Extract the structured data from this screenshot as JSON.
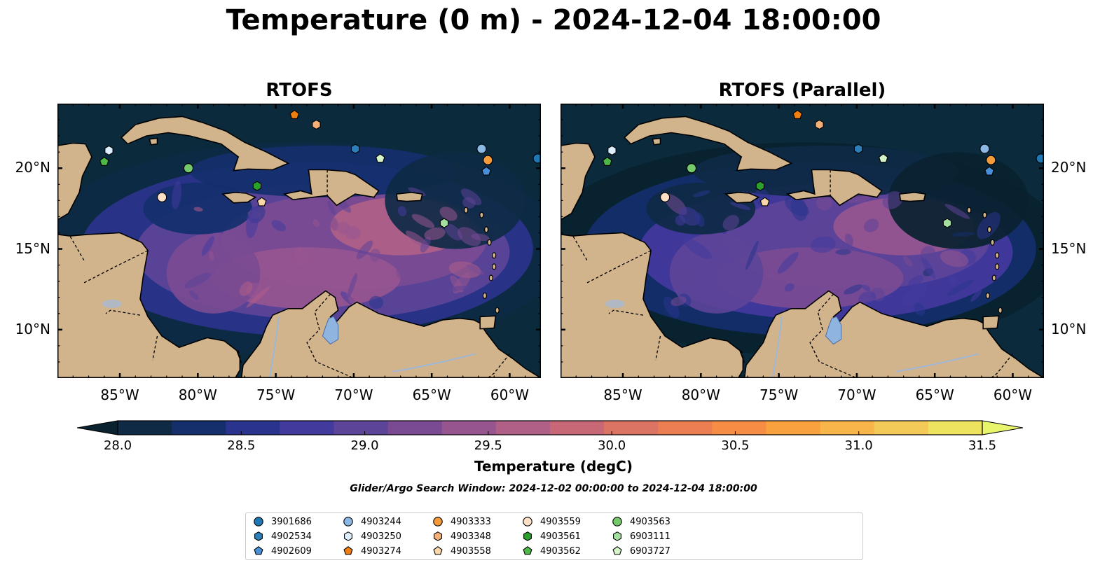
{
  "title": "Temperature (0 m) - 2024-12-04 18:00:00",
  "panels": [
    {
      "title": "RTOFS",
      "palette_shift": 0.0
    },
    {
      "title": "RTOFS (Parallel)",
      "palette_shift": -0.25
    }
  ],
  "map": {
    "lon_range": [
      -89,
      -58
    ],
    "lat_range": [
      7,
      24
    ],
    "x_ticks": [
      "85°W",
      "80°W",
      "75°W",
      "70°W",
      "65°W",
      "60°W"
    ],
    "x_tick_values": [
      -85,
      -80,
      -75,
      -70,
      -65,
      -60
    ],
    "y_ticks": [
      "20°N",
      "15°N",
      "10°N"
    ],
    "y_tick_values": [
      20,
      15,
      10
    ],
    "ocean_color": "#0b2a3c",
    "land_color": "#d2b48c",
    "lake_color": "#8fb4e0"
  },
  "colorbar": {
    "min": 28.0,
    "max": 31.5,
    "tick_labels": [
      "28.0",
      "28.5",
      "29.0",
      "29.5",
      "30.0",
      "30.5",
      "31.0",
      "31.5"
    ],
    "tick_values": [
      28.0,
      28.5,
      29.0,
      29.5,
      30.0,
      30.5,
      31.0,
      31.5
    ],
    "label": "Temperature (degC)",
    "colors": [
      "#0e2a45",
      "#142f6c",
      "#2a348e",
      "#433a9e",
      "#5c4498",
      "#7a4b93",
      "#975590",
      "#b05f86",
      "#c86877",
      "#dc7463",
      "#ec7f52",
      "#f58d44",
      "#f9a03f",
      "#f7b54a",
      "#f3ca58",
      "#eee35f"
    ],
    "under_color": "#0a2230",
    "over_color": "#e9f56a"
  },
  "search_window": "Glider/Argo Search Window: 2024-12-02 00:00:00 to 2024-12-04 18:00:00",
  "legend": [
    {
      "id": "3901686",
      "marker": "circle",
      "color": "#1f77b4",
      "lon": -58.2,
      "lat": 20.6
    },
    {
      "id": "4902534",
      "marker": "hexagon",
      "color": "#2c7fb8",
      "lon": -69.9,
      "lat": 21.2
    },
    {
      "id": "4902609",
      "marker": "pentagon",
      "color": "#4a90d9",
      "lon": -61.5,
      "lat": 19.8
    },
    {
      "id": "4903244",
      "marker": "circle",
      "color": "#8cb8e6",
      "lon": -61.8,
      "lat": 21.2
    },
    {
      "id": "4903250",
      "marker": "hexagon",
      "color": "#ddeeff",
      "lon": -85.7,
      "lat": 21.1
    },
    {
      "id": "4903274",
      "marker": "pentagon",
      "color": "#f07f10",
      "lon": -73.8,
      "lat": 23.3
    },
    {
      "id": "4903333",
      "marker": "circle",
      "color": "#f59a38",
      "lon": -61.4,
      "lat": 20.5
    },
    {
      "id": "4903348",
      "marker": "hexagon",
      "color": "#f5b078",
      "lon": -72.4,
      "lat": 22.7
    },
    {
      "id": "4903558",
      "marker": "pentagon",
      "color": "#fcd7a8",
      "lon": -75.9,
      "lat": 17.9
    },
    {
      "id": "4903559",
      "marker": "circle",
      "color": "#fde0c5",
      "lon": -82.3,
      "lat": 18.2
    },
    {
      "id": "4903561",
      "marker": "hexagon",
      "color": "#2ca02c",
      "lon": -76.2,
      "lat": 18.9
    },
    {
      "id": "4903562",
      "marker": "pentagon",
      "color": "#4db848",
      "lon": -86.0,
      "lat": 20.4
    },
    {
      "id": "4903563",
      "marker": "circle",
      "color": "#74c96a",
      "lon": -80.6,
      "lat": 20.0
    },
    {
      "id": "6903111",
      "marker": "hexagon",
      "color": "#a4dfa0",
      "lon": -64.2,
      "lat": 16.6
    },
    {
      "id": "6903727",
      "marker": "pentagon",
      "color": "#d5f5c8",
      "lon": -68.3,
      "lat": 20.6
    }
  ]
}
